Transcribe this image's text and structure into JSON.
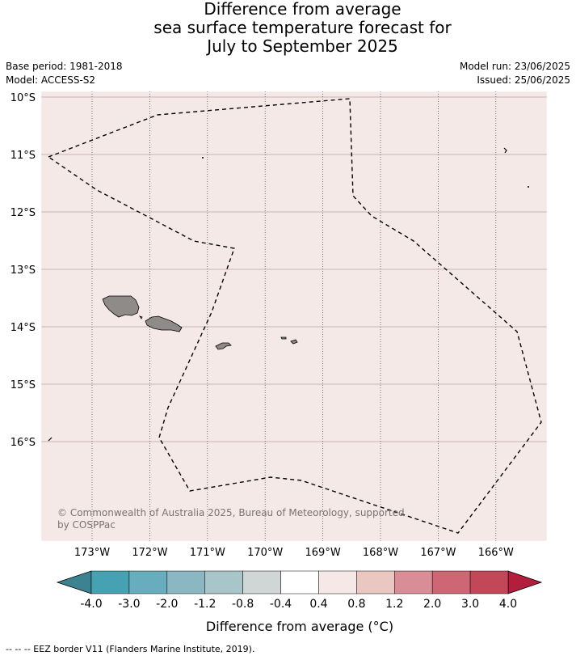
{
  "title": {
    "line1": "Difference from average",
    "line2": "sea surface temperature forecast for",
    "line3": "July to September 2025"
  },
  "info": {
    "base_period": "Base period: 1981-2018",
    "model": "Model: ACCESS-S2",
    "model_run": "Model run: 23/06/2025",
    "issued": "Issued: 25/06/2025"
  },
  "map": {
    "ocean_color": "#f5e9e8",
    "land_color": "#8f8b89",
    "lat_labels": [
      {
        "lat": -10,
        "label": "10°S"
      },
      {
        "lat": -11,
        "label": "11°S"
      },
      {
        "lat": -12,
        "label": "12°S"
      },
      {
        "lat": -13,
        "label": "13°S"
      },
      {
        "lat": -14,
        "label": "14°S"
      },
      {
        "lat": -15,
        "label": "15°S"
      },
      {
        "lat": -16,
        "label": "16°S"
      }
    ],
    "lon_labels": [
      {
        "lon": -173,
        "label": "173°W"
      },
      {
        "lon": -172,
        "label": "172°W"
      },
      {
        "lon": -171,
        "label": "171°W"
      },
      {
        "lon": -170,
        "label": "170°W"
      },
      {
        "lon": -169,
        "label": "169°W"
      },
      {
        "lon": -168,
        "label": "168°W"
      },
      {
        "lon": -167,
        "label": "167°W"
      },
      {
        "lon": -166,
        "label": "166°W"
      }
    ],
    "copyright_line1": "© Commonwealth of Australia 2025, Bureau of Meteorology, supported",
    "copyright_line2": "by COSPPac"
  },
  "colorbar": {
    "label": "Difference from average (°C)",
    "ticks": [
      "-4.0",
      "-3.0",
      "-2.0",
      "-1.2",
      "-0.8",
      "-0.4",
      "0.4",
      "0.8",
      "1.2",
      "2.0",
      "3.0",
      "4.0"
    ],
    "under_color": "#3c8290",
    "over_color": "#b31e3c",
    "colors": [
      "#46a2b2",
      "#68adbd",
      "#8ab7c2",
      "#a8c6c9",
      "#d0d6d6",
      "#ffffff",
      "#f5e8e6",
      "#ebc7c2",
      "#d98d96",
      "#cc6773",
      "#c24758"
    ]
  },
  "footnote": "--  --  -- EEZ border V11 (Flanders Marine Institute, 2019)."
}
